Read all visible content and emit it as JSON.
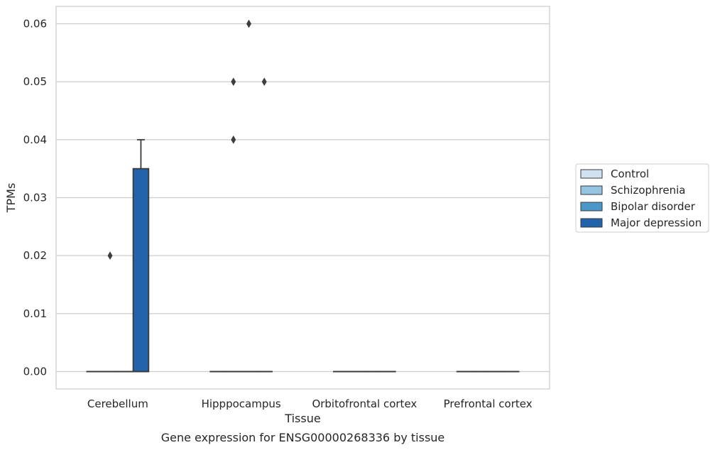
{
  "chart_data": {
    "type": "box",
    "title": "",
    "caption": "Gene expression for ENSG00000268336 by tissue",
    "xlabel": "Tissue",
    "ylabel": "TPMs",
    "ylim": [
      -0.003,
      0.063
    ],
    "yticks": [
      "0.00",
      "0.01",
      "0.02",
      "0.03",
      "0.04",
      "0.05",
      "0.06"
    ],
    "ytick_values": [
      0,
      0.01,
      0.02,
      0.03,
      0.04,
      0.05,
      0.06
    ],
    "grid": "horizontal",
    "legend_position": "right",
    "categories": [
      "Cerebellum",
      "Hipppocampus",
      "Orbitofrontal cortex",
      "Prefrontal cortex"
    ],
    "series": [
      {
        "name": "Control",
        "color": "#d0e1f2",
        "boxes": [
          {
            "q1": 0,
            "median": 0,
            "q3": 0,
            "whisker_low": 0,
            "whisker_high": 0,
            "outliers": []
          },
          {
            "q1": 0,
            "median": 0,
            "q3": 0,
            "whisker_low": 0,
            "whisker_high": 0,
            "outliers": []
          },
          {
            "q1": 0,
            "median": 0,
            "q3": 0,
            "whisker_low": 0,
            "whisker_high": 0,
            "outliers": []
          },
          {
            "q1": 0,
            "median": 0,
            "q3": 0,
            "whisker_low": 0,
            "whisker_high": 0,
            "outliers": []
          }
        ]
      },
      {
        "name": "Schizophrenia",
        "color": "#94c4df",
        "boxes": [
          {
            "q1": 0,
            "median": 0,
            "q3": 0,
            "whisker_low": 0,
            "whisker_high": 0,
            "outliers": [
              0.02
            ]
          },
          {
            "q1": 0,
            "median": 0,
            "q3": 0,
            "whisker_low": 0,
            "whisker_high": 0,
            "outliers": [
              0.04,
              0.05
            ]
          },
          {
            "q1": 0,
            "median": 0,
            "q3": 0,
            "whisker_low": 0,
            "whisker_high": 0,
            "outliers": []
          },
          {
            "q1": 0,
            "median": 0,
            "q3": 0,
            "whisker_low": 0,
            "whisker_high": 0,
            "outliers": []
          }
        ]
      },
      {
        "name": "Bipolar disorder",
        "color": "#4a98c9",
        "boxes": [
          {
            "q1": 0,
            "median": 0,
            "q3": 0,
            "whisker_low": 0,
            "whisker_high": 0,
            "outliers": []
          },
          {
            "q1": 0,
            "median": 0,
            "q3": 0,
            "whisker_low": 0,
            "whisker_high": 0,
            "outliers": [
              0.06
            ]
          },
          {
            "q1": 0,
            "median": 0,
            "q3": 0,
            "whisker_low": 0,
            "whisker_high": 0,
            "outliers": []
          },
          {
            "q1": 0,
            "median": 0,
            "q3": 0,
            "whisker_low": 0,
            "whisker_high": 0,
            "outliers": []
          }
        ]
      },
      {
        "name": "Major depression",
        "color": "#2164ab",
        "boxes": [
          {
            "q1": 0,
            "median": 0,
            "q3": 0.035,
            "whisker_low": 0,
            "whisker_high": 0.04,
            "outliers": []
          },
          {
            "q1": 0,
            "median": 0,
            "q3": 0,
            "whisker_low": 0,
            "whisker_high": 0,
            "outliers": [
              0.05
            ]
          },
          {
            "q1": 0,
            "median": 0,
            "q3": 0,
            "whisker_low": 0,
            "whisker_high": 0,
            "outliers": []
          },
          {
            "q1": 0,
            "median": 0,
            "q3": 0,
            "whisker_low": 0,
            "whisker_high": 0,
            "outliers": []
          }
        ]
      }
    ]
  }
}
